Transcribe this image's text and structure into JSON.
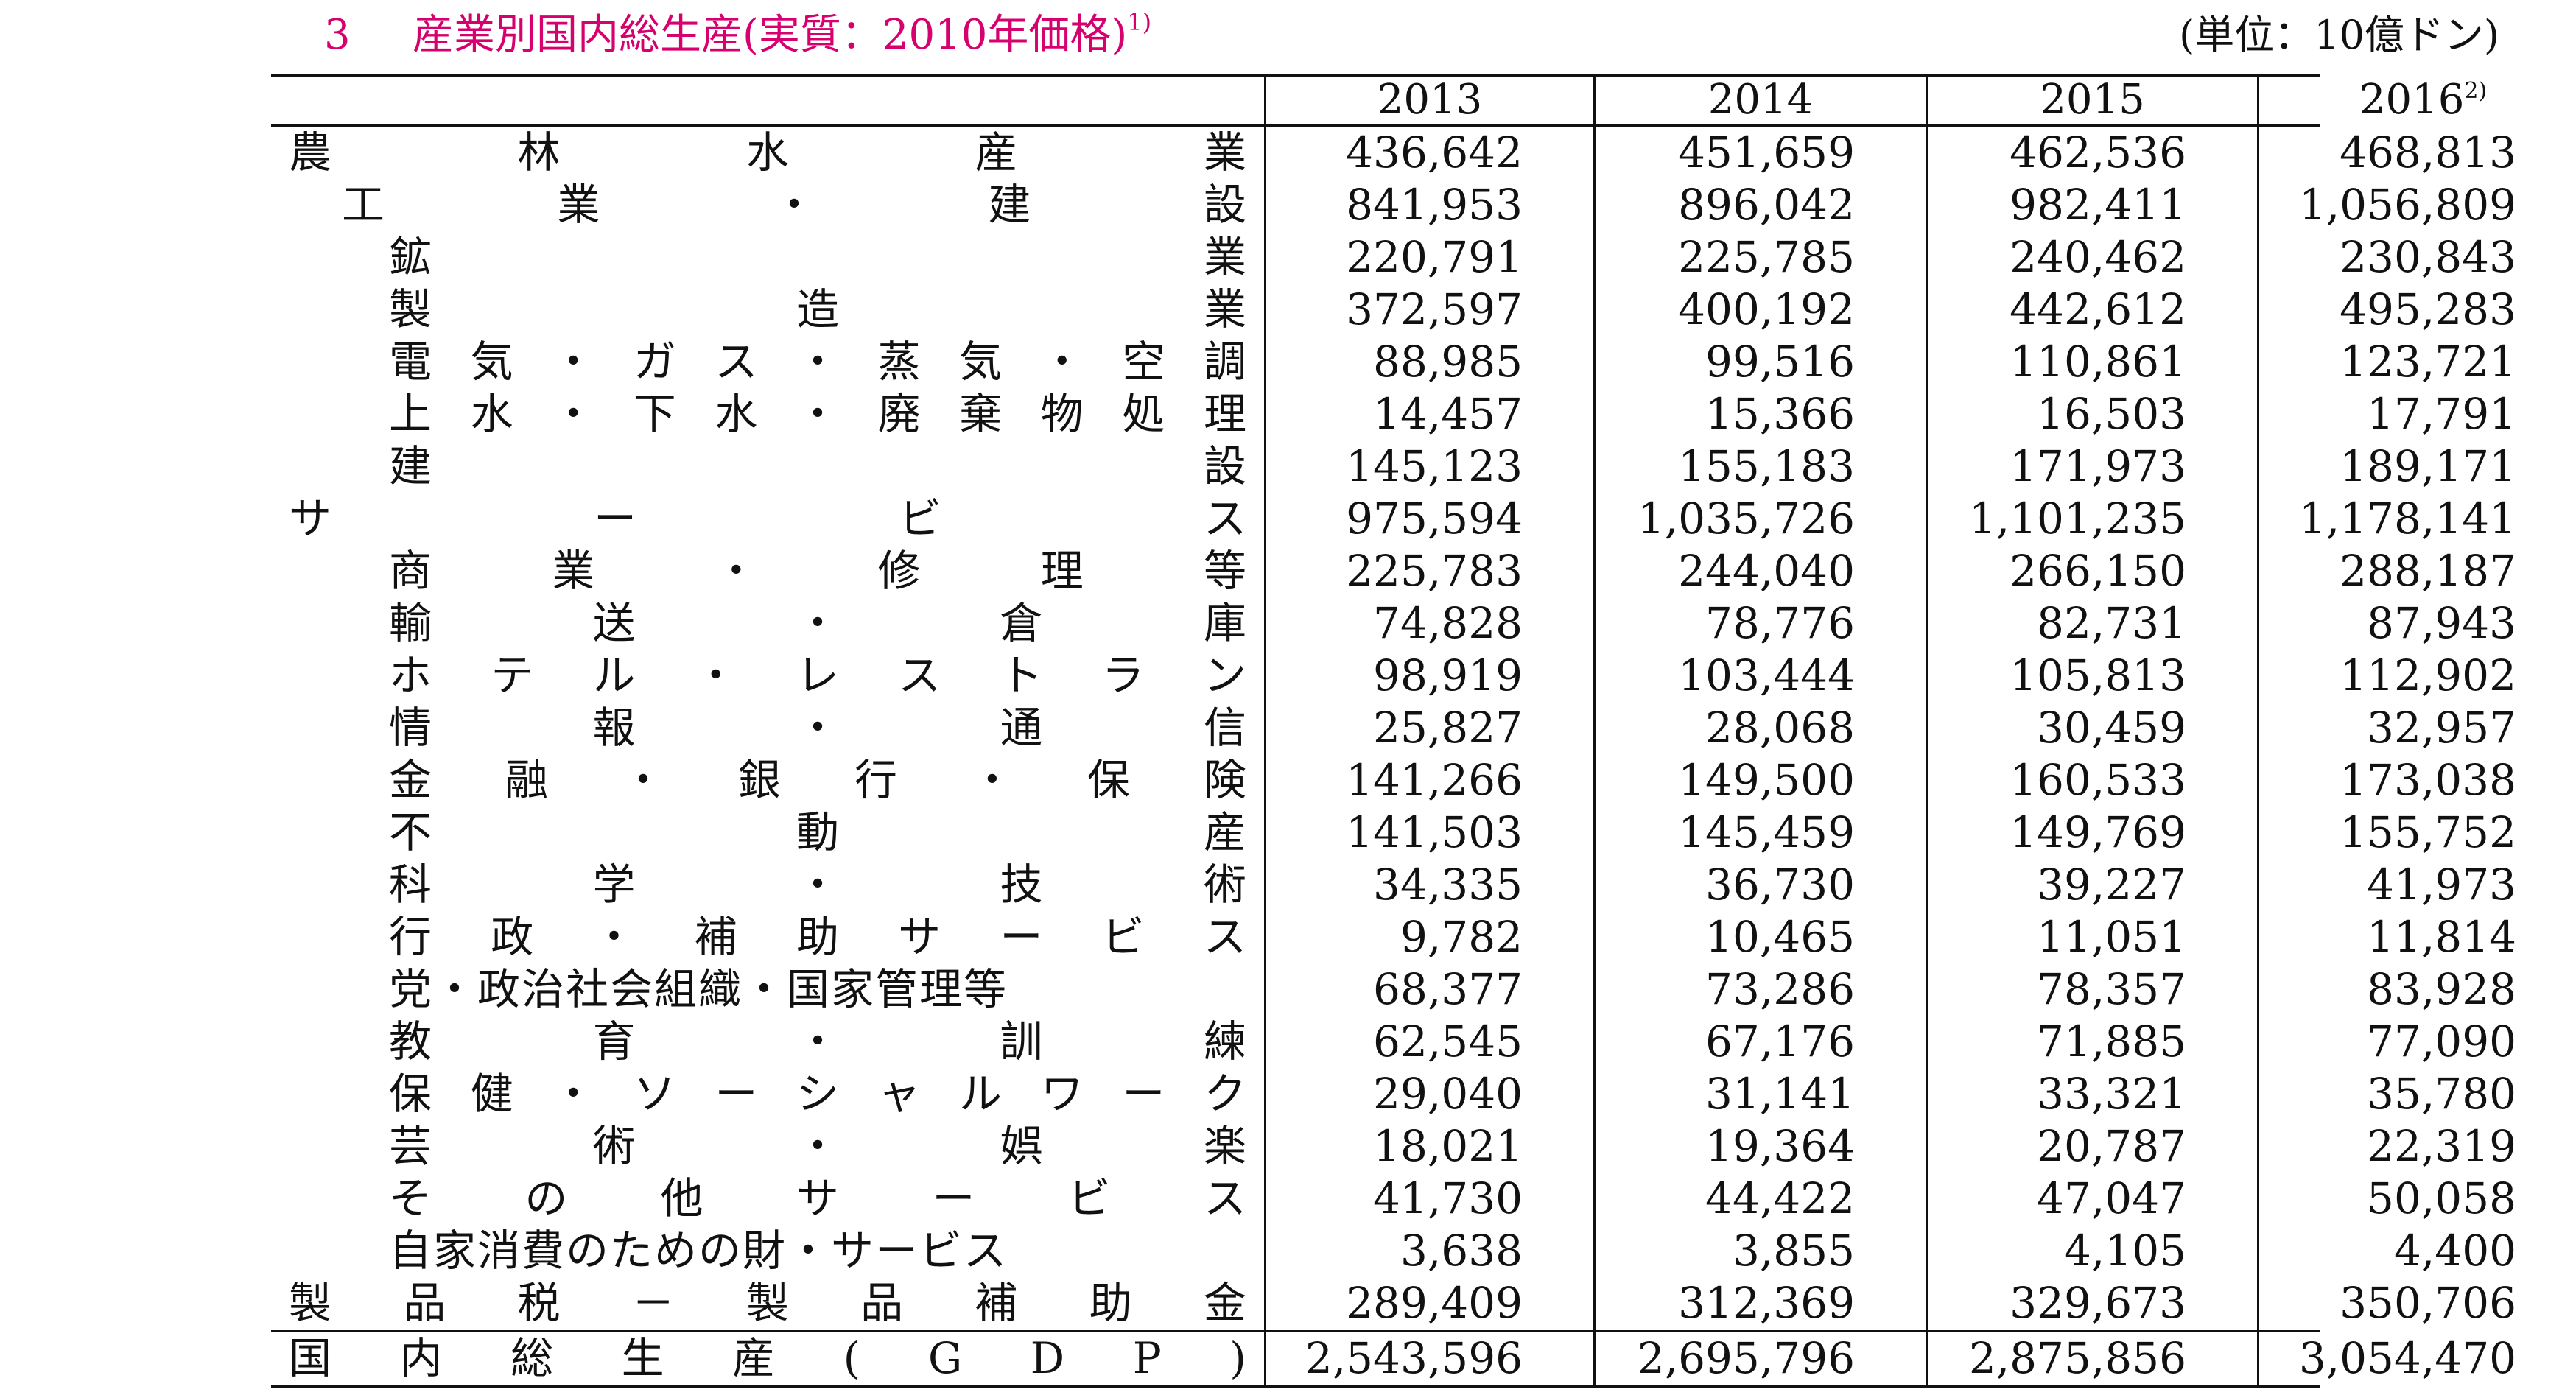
{
  "title": {
    "number": "3",
    "text": "産業別国内総生産(実質：2010年価格)",
    "note": "1)"
  },
  "unit": "(単位：10億ドン)",
  "headers": [
    {
      "label": "2013",
      "note": ""
    },
    {
      "label": "2014",
      "note": ""
    },
    {
      "label": "2015",
      "note": ""
    },
    {
      "label": "2016",
      "note": "2)"
    }
  ],
  "rows": [
    {
      "label": "農林水産業",
      "level": 0,
      "values": [
        "436,642",
        "451,659",
        "462,536",
        "468,813"
      ]
    },
    {
      "label": "工業・建設",
      "level": 1,
      "values": [
        "841,953",
        "896,042",
        "982,411",
        "1,056,809"
      ]
    },
    {
      "label": "鉱業",
      "level": 2,
      "values": [
        "220,791",
        "225,785",
        "240,462",
        "230,843"
      ]
    },
    {
      "label": "製造業",
      "level": 2,
      "values": [
        "372,597",
        "400,192",
        "442,612",
        "495,283"
      ]
    },
    {
      "label": "電気・ガス・蒸気・空調",
      "level": 2,
      "values": [
        "88,985",
        "99,516",
        "110,861",
        "123,721"
      ]
    },
    {
      "label": "上水・下水・廃棄物処理",
      "level": 2,
      "values": [
        "14,457",
        "15,366",
        "16,503",
        "17,791"
      ]
    },
    {
      "label": "建設",
      "level": 2,
      "values": [
        "145,123",
        "155,183",
        "171,973",
        "189,171"
      ]
    },
    {
      "label": "サービス",
      "level": 0,
      "values": [
        "975,594",
        "1,035,726",
        "1,101,235",
        "1,178,141"
      ]
    },
    {
      "label": "商業・修理等",
      "level": 2,
      "values": [
        "225,783",
        "244,040",
        "266,150",
        "288,187"
      ]
    },
    {
      "label": "輸送・倉庫",
      "level": 2,
      "values": [
        "74,828",
        "78,776",
        "82,731",
        "87,943"
      ]
    },
    {
      "label": "ホテル・レストラン",
      "level": 2,
      "values": [
        "98,919",
        "103,444",
        "105,813",
        "112,902"
      ]
    },
    {
      "label": "情報・通信",
      "level": 2,
      "values": [
        "25,827",
        "28,068",
        "30,459",
        "32,957"
      ]
    },
    {
      "label": "金融・銀行・保険",
      "level": 2,
      "values": [
        "141,266",
        "149,500",
        "160,533",
        "173,038"
      ]
    },
    {
      "label": "不動産",
      "level": 2,
      "values": [
        "141,503",
        "145,459",
        "149,769",
        "155,752"
      ]
    },
    {
      "label": "科学・技術",
      "level": 2,
      "values": [
        "34,335",
        "36,730",
        "39,227",
        "41,973"
      ]
    },
    {
      "label": "行政・補助サービス",
      "level": 2,
      "values": [
        "9,782",
        "10,465",
        "11,051",
        "11,814"
      ]
    },
    {
      "label": "党・政治社会組織・国家管理等",
      "level": 2,
      "tight": true,
      "values": [
        "68,377",
        "73,286",
        "78,357",
        "83,928"
      ]
    },
    {
      "label": "教育・訓練",
      "level": 2,
      "values": [
        "62,545",
        "67,176",
        "71,885",
        "77,090"
      ]
    },
    {
      "label": "保健・ソーシャルワーク",
      "level": 2,
      "values": [
        "29,040",
        "31,141",
        "33,321",
        "35,780"
      ]
    },
    {
      "label": "芸術・娯楽",
      "level": 2,
      "values": [
        "18,021",
        "19,364",
        "20,787",
        "22,319"
      ]
    },
    {
      "label": "その他サービス",
      "level": 2,
      "values": [
        "41,730",
        "44,422",
        "47,047",
        "50,058"
      ]
    },
    {
      "label": "自家消費のための財・サービス",
      "level": 2,
      "tight": true,
      "values": [
        "3,638",
        "3,855",
        "4,105",
        "4,400"
      ]
    },
    {
      "label": "製品税－製品補助金",
      "level": 0,
      "values": [
        "289,409",
        "312,369",
        "329,673",
        "350,706"
      ]
    },
    {
      "label": "国内総生産(GDP)",
      "level": 0,
      "total": true,
      "values": [
        "2,543,596",
        "2,695,796",
        "2,875,856",
        "3,054,470"
      ]
    }
  ]
}
